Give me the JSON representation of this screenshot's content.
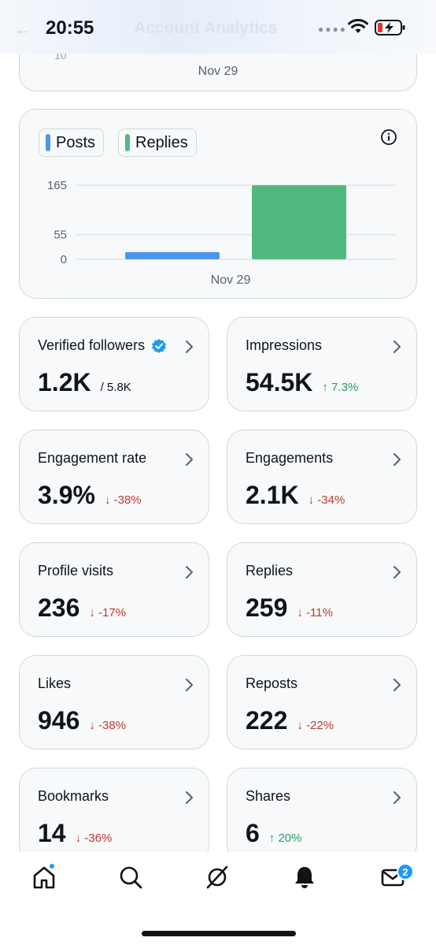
{
  "status_bar": {
    "time": "20:55"
  },
  "header": {
    "title": "Account Analytics"
  },
  "top_card": {
    "tick": "10",
    "date": "Nov 29"
  },
  "colors": {
    "posts": "#4c97ec",
    "replies": "#52b97e",
    "negative": "#c0392b",
    "positive": "#2e9a5d",
    "accent": "#1d9bf0"
  },
  "chart_data": {
    "type": "bar",
    "series": [
      {
        "name": "Posts",
        "values": [
          16
        ]
      },
      {
        "name": "Replies",
        "values": [
          165
        ]
      }
    ],
    "categories": [
      "Nov 29"
    ],
    "ytick_labels": [
      "0",
      "55",
      "165"
    ],
    "yticks": [
      0,
      55,
      165
    ],
    "ylim": [
      0,
      165
    ],
    "grid": true,
    "legend": "top-left"
  },
  "metrics": [
    {
      "label": "Verified followers",
      "value": "1.2K",
      "sub": "/ 5.8K",
      "delta": "",
      "direction": "",
      "verified": true
    },
    {
      "label": "Impressions",
      "value": "54.5K",
      "sub": "",
      "delta": "7.3%",
      "direction": "up"
    },
    {
      "label": "Engagement rate",
      "value": "3.9%",
      "sub": "",
      "delta": "-38%",
      "direction": "down"
    },
    {
      "label": "Engagements",
      "value": "2.1K",
      "sub": "",
      "delta": "-34%",
      "direction": "down"
    },
    {
      "label": "Profile visits",
      "value": "236",
      "sub": "",
      "delta": "-17%",
      "direction": "down"
    },
    {
      "label": "Replies",
      "value": "259",
      "sub": "",
      "delta": "-11%",
      "direction": "down"
    },
    {
      "label": "Likes",
      "value": "946",
      "sub": "",
      "delta": "-38%",
      "direction": "down"
    },
    {
      "label": "Reposts",
      "value": "222",
      "sub": "",
      "delta": "-22%",
      "direction": "down"
    },
    {
      "label": "Bookmarks",
      "value": "14",
      "sub": "",
      "delta": "-36%",
      "direction": "down"
    },
    {
      "label": "Shares",
      "value": "6",
      "sub": "",
      "delta": "20%",
      "direction": "up"
    }
  ],
  "tab_bar": {
    "icons": [
      "home-icon",
      "search-icon",
      "grok-icon",
      "notifications-icon",
      "messages-icon"
    ],
    "messages_badge": "2"
  }
}
